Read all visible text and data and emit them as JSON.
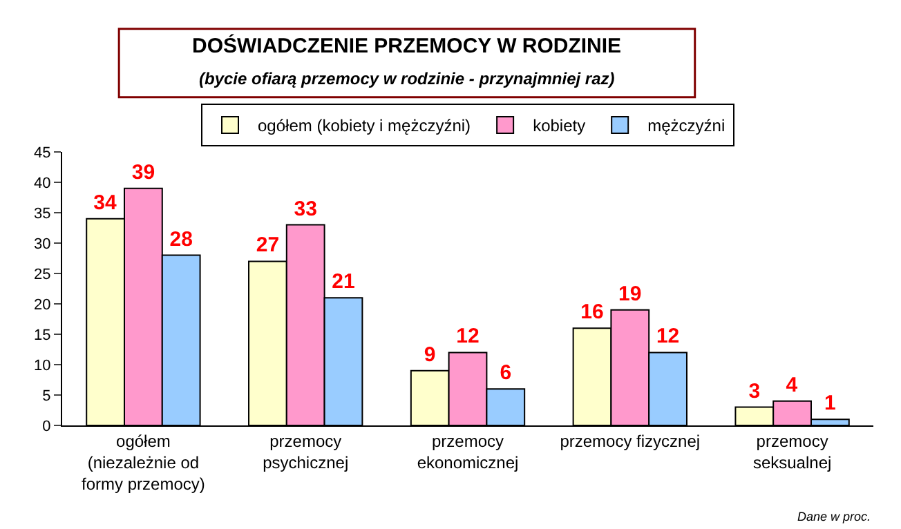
{
  "chart_data": {
    "type": "bar",
    "title": "DOŚWIADCZENIE PRZEMOCY W RODZINIE",
    "subtitle": "(bycie ofiarą przemocy w rodzinie - przynajmniej raz)",
    "categories": [
      "ogółem\n(niezależnie od\nformy przemocy)",
      "przemocy\npsychicznej",
      "przemocy\nekonomicznej",
      "przemocy fizycznej",
      "przemocy\nseksualnej"
    ],
    "series": [
      {
        "name": "ogółem (kobiety i mężczyźni)",
        "color": "#ffffcc",
        "values": [
          34,
          27,
          9,
          16,
          3
        ]
      },
      {
        "name": "kobiety",
        "color": "#ff99cc",
        "values": [
          39,
          33,
          12,
          19,
          4
        ]
      },
      {
        "name": "mężczyźni",
        "color": "#99ccff",
        "values": [
          28,
          21,
          6,
          12,
          1
        ]
      }
    ],
    "ylim": [
      0,
      45
    ],
    "yticks": [
      0,
      5,
      10,
      15,
      20,
      25,
      30,
      35,
      40,
      45
    ],
    "data_labels": true,
    "grid": false,
    "legend": "top",
    "annotations": [
      "Dane w proc."
    ]
  }
}
